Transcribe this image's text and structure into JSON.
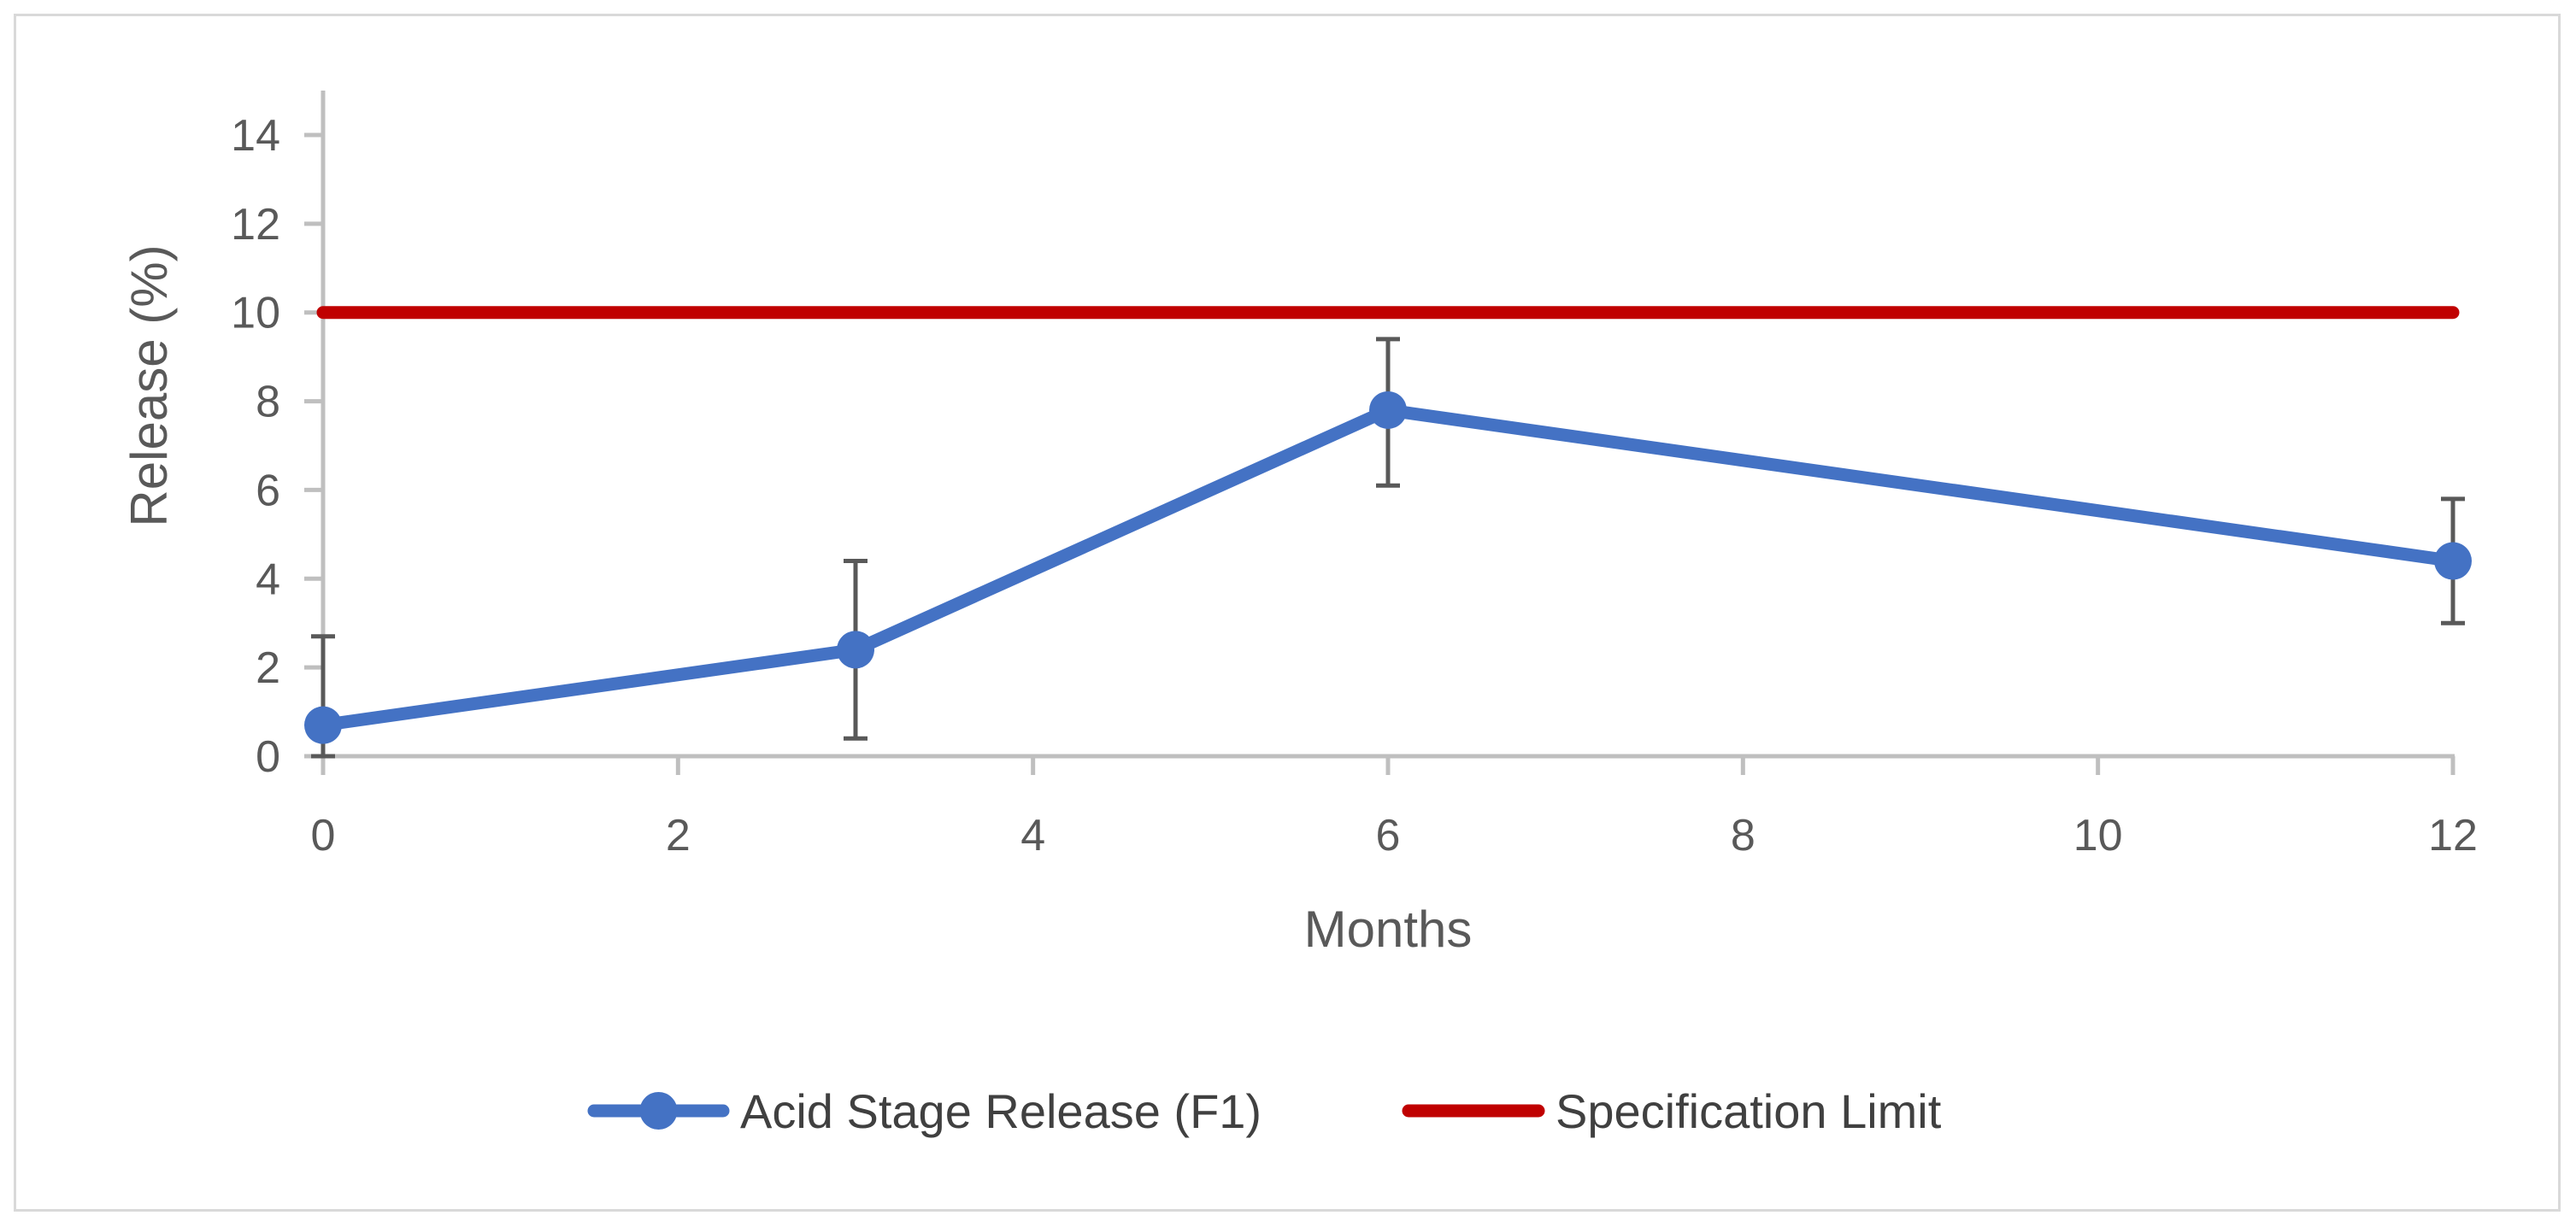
{
  "chart_data": {
    "type": "line",
    "title": "",
    "xlabel": "Months",
    "ylabel": "Release (%)",
    "xlim": [
      0,
      12
    ],
    "ylim": [
      0,
      14
    ],
    "x_ticks": [
      0,
      2,
      4,
      6,
      8,
      10,
      12
    ],
    "y_ticks": [
      0,
      2,
      4,
      6,
      8,
      10,
      12,
      14
    ],
    "grid": false,
    "legend_position": "bottom",
    "series": [
      {
        "name": "Acid Stage Release (F1)",
        "color": "#4472c4",
        "marker": "circle",
        "x": [
          0,
          3,
          6,
          12
        ],
        "y": [
          0.7,
          2.4,
          7.8,
          4.4
        ],
        "error_minus": [
          0.7,
          2.0,
          1.7,
          1.4
        ],
        "error_plus": [
          2.0,
          2.0,
          1.6,
          1.4
        ]
      },
      {
        "name": "Specification Limit",
        "color": "#c00000",
        "marker": "none",
        "x": [
          0,
          12
        ],
        "y": [
          10,
          10
        ]
      }
    ]
  }
}
